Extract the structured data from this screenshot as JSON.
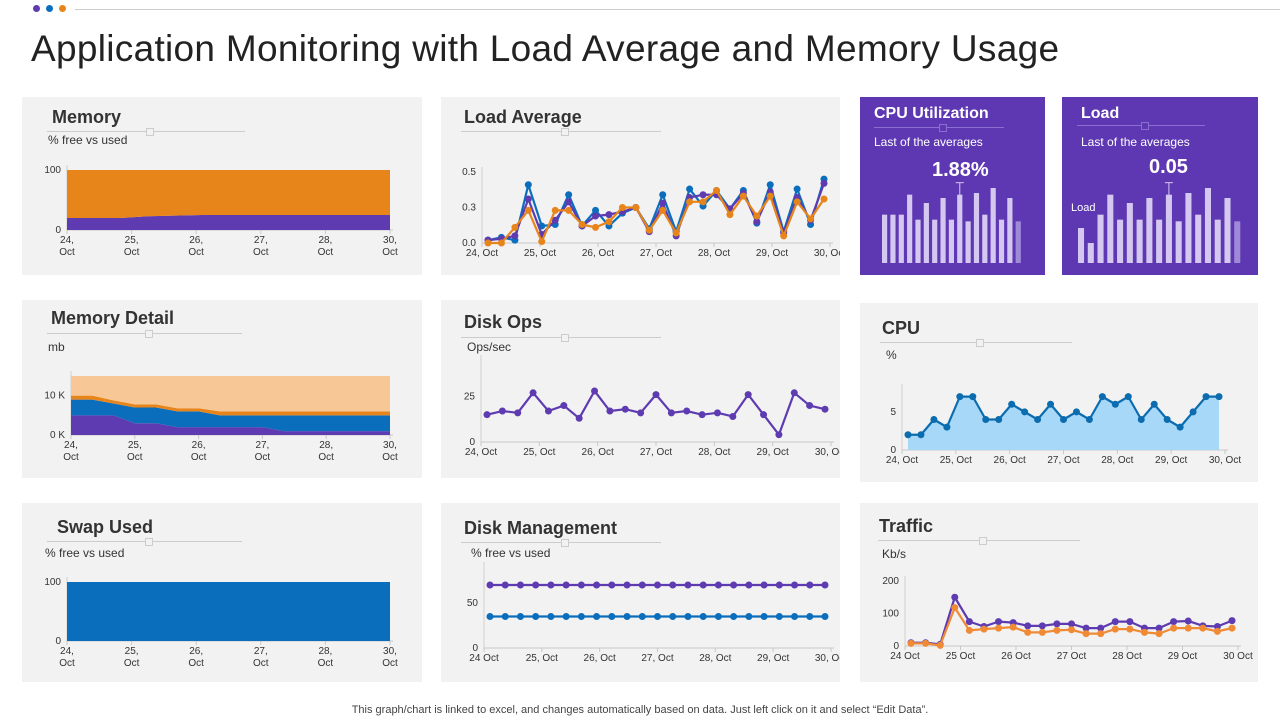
{
  "title": "Application Monitoring with Load Average and Memory Usage",
  "footer": "This graph/chart is linked to excel,  and changes automatically based on data. Just left click on it and select “Edit Data”.",
  "colors": {
    "orange": "#e8851a",
    "purple": "#5e3bb0",
    "blue": "#0a6ebd",
    "peach": "#f7c896",
    "light_blue": "#a8d8f8",
    "card_purple": "#5e38b2"
  },
  "cards": {
    "memory": {
      "title": "Memory",
      "subtitle": "% free vs used"
    },
    "load_average": {
      "title": "Load Average"
    },
    "cpu_utilization": {
      "title": "CPU Utilization",
      "subtitle": "Last of the averages",
      "value": "1.88%"
    },
    "load": {
      "title": "Load",
      "subtitle": "Last of the averages",
      "value": "0.05",
      "side_label": "Load"
    },
    "memory_detail": {
      "title": "Memory Detail",
      "subtitle": "mb"
    },
    "disk_ops": {
      "title": "Disk Ops",
      "subtitle": "Ops/sec"
    },
    "cpu": {
      "title": "CPU",
      "subtitle": "%"
    },
    "swap_used": {
      "title": "Swap Used",
      "subtitle": "% free vs used"
    },
    "disk_management": {
      "title": "Disk Management",
      "subtitle": "% free vs used"
    },
    "traffic": {
      "title": "Traffic",
      "subtitle": "Kb/s"
    }
  },
  "chart_data": [
    {
      "id": "memory",
      "type": "area",
      "stacked": true,
      "ylim": [
        0,
        100
      ],
      "yticks": [
        {
          "v": 0,
          "l": "0"
        },
        {
          "v": 100,
          "l": "100"
        }
      ],
      "xticks": [
        "24,|Oct",
        "25,|Oct",
        "26,|Oct",
        "27,|Oct",
        "28,|Oct",
        "30,|Oct"
      ],
      "series": [
        {
          "color": "#5e3bb0",
          "values": [
            20,
            20,
            20,
            23,
            24,
            25,
            25,
            25,
            25,
            25,
            25,
            25,
            25
          ]
        },
        {
          "color": "#e8851a",
          "values": [
            80,
            80,
            80,
            77,
            76,
            75,
            75,
            75,
            75,
            75,
            75,
            75,
            75
          ]
        }
      ]
    },
    {
      "id": "load_average",
      "type": "line",
      "markers": true,
      "ylim": [
        0,
        0.5
      ],
      "yticks": [
        {
          "v": 0,
          "l": "0.0"
        },
        {
          "v": 0.25,
          "l": "0.3"
        },
        {
          "v": 0.5,
          "l": "0.5"
        }
      ],
      "xticks": [
        "24, Oct",
        "25, Oct",
        "26, Oct",
        "27, Oct",
        "28, Oct",
        "29, Oct",
        "30, Oct"
      ],
      "series": [
        {
          "color": "#0a6ebd",
          "values": [
            0.02,
            0.04,
            0.02,
            0.41,
            0.12,
            0.13,
            0.34,
            0.12,
            0.23,
            0.12,
            0.21,
            0.25,
            0.1,
            0.34,
            0.08,
            0.38,
            0.26,
            0.37,
            0.24,
            0.37,
            0.14,
            0.41,
            0.08,
            0.38,
            0.13,
            0.45
          ]
        },
        {
          "color": "#5e3bb0",
          "values": [
            0.02,
            0.03,
            0.05,
            0.31,
            0.06,
            0.16,
            0.29,
            0.12,
            0.19,
            0.2,
            0.22,
            0.25,
            0.08,
            0.28,
            0.05,
            0.32,
            0.34,
            0.34,
            0.24,
            0.35,
            0.15,
            0.36,
            0.07,
            0.32,
            0.16,
            0.42
          ]
        },
        {
          "color": "#e8851a",
          "values": [
            0,
            0,
            0.11,
            0.23,
            0.01,
            0.23,
            0.23,
            0.13,
            0.11,
            0.15,
            0.25,
            0.25,
            0.09,
            0.23,
            0.07,
            0.29,
            0.29,
            0.37,
            0.2,
            0.33,
            0.19,
            0.33,
            0.05,
            0.29,
            0.17,
            0.31
          ]
        }
      ]
    },
    {
      "id": "memory_detail",
      "type": "area",
      "stacked": true,
      "ylim": [
        0,
        15000
      ],
      "yticks": [
        {
          "v": 0,
          "l": "0 K"
        },
        {
          "v": 10000,
          "l": "10 K"
        }
      ],
      "xticks": [
        "24,|Oct",
        "25,|Oct",
        "26,|Oct",
        "27,|Oct",
        "28,|Oct",
        "30,|Oct"
      ],
      "series": [
        {
          "color": "#5e3bb0",
          "values": [
            5000,
            5000,
            5000,
            3000,
            3000,
            2000,
            2000,
            2000,
            2000,
            2000,
            1000,
            1000,
            1000,
            1000,
            1000,
            1000
          ]
        },
        {
          "color": "#0a6ebd",
          "values": [
            4000,
            4000,
            3000,
            4000,
            4000,
            4000,
            4000,
            3000,
            3000,
            3000,
            4000,
            4000,
            4000,
            4000,
            4000,
            4000
          ]
        },
        {
          "color": "#e8851a",
          "values": [
            1000,
            1000,
            800,
            800,
            800,
            800,
            800,
            1000,
            1000,
            1000,
            1000,
            1000,
            1000,
            1000,
            1000,
            1000
          ]
        },
        {
          "color": "#f7c896",
          "values": [
            5000,
            5000,
            6200,
            7200,
            7200,
            8200,
            8200,
            9000,
            9000,
            9000,
            9000,
            9000,
            9000,
            9000,
            9000,
            9000
          ]
        }
      ]
    },
    {
      "id": "disk_ops",
      "type": "line",
      "markers": true,
      "ylim": [
        0,
        45
      ],
      "yticks": [
        {
          "v": 0,
          "l": "0"
        },
        {
          "v": 25,
          "l": "25"
        }
      ],
      "xticks": [
        "24, Oct",
        "25, Oct",
        "26, Oct",
        "27, Oct",
        "28, Oct",
        "29, Oct",
        "30, Oct"
      ],
      "series": [
        {
          "color": "#5e3bb0",
          "values": [
            15,
            17,
            16,
            27,
            17,
            20,
            13,
            28,
            17,
            18,
            16,
            26,
            16,
            17,
            15,
            16,
            14,
            26,
            15,
            4,
            27,
            20,
            18
          ]
        }
      ]
    },
    {
      "id": "cpu",
      "type": "area-line",
      "markers": true,
      "ylim": [
        0,
        8
      ],
      "yticks": [
        {
          "v": 0,
          "l": "0"
        },
        {
          "v": 5,
          "l": "5"
        }
      ],
      "xticks": [
        "24, Oct",
        "25, Oct",
        "26, Oct",
        "27, Oct",
        "28, Oct",
        "29, Oct",
        "30, Oct"
      ],
      "series": [
        {
          "color": "#0b6cb0",
          "fill": "#a8d8f8",
          "values": [
            2,
            2,
            4,
            3,
            7,
            7,
            4,
            4,
            6,
            5,
            4,
            6,
            4,
            5,
            4,
            7,
            6,
            7,
            4,
            6,
            4,
            3,
            5,
            7,
            7
          ]
        }
      ]
    },
    {
      "id": "swap_used",
      "type": "area",
      "stacked": true,
      "ylim": [
        0,
        100
      ],
      "yticks": [
        {
          "v": 0,
          "l": "0"
        },
        {
          "v": 100,
          "l": "100"
        }
      ],
      "xticks": [
        "24,|Oct",
        "25,|Oct",
        "26,|Oct",
        "27,|Oct",
        "28,|Oct",
        "30,|Oct"
      ],
      "series": [
        {
          "color": "#0a6ebd",
          "values": [
            100,
            100,
            100,
            100,
            100,
            100,
            100
          ]
        }
      ]
    },
    {
      "id": "disk_management",
      "type": "line",
      "markers": true,
      "ylim": [
        0,
        90
      ],
      "yticks": [
        {
          "v": 0,
          "l": "0"
        },
        {
          "v": 50,
          "l": "50"
        }
      ],
      "xticks": [
        "24 Oct",
        "25, Oct",
        "26, Oct",
        "27, Oct",
        "28, Oct",
        "29, Oct",
        "30, Oct"
      ],
      "series": [
        {
          "color": "#5e3bb0",
          "values": [
            70,
            70,
            70,
            70,
            70,
            70,
            70,
            70,
            70,
            70,
            70,
            70,
            70,
            70,
            70,
            70,
            70,
            70,
            70,
            70,
            70,
            70,
            70
          ]
        },
        {
          "color": "#0a6ebd",
          "values": [
            35,
            35,
            35,
            35,
            35,
            35,
            35,
            35,
            35,
            35,
            35,
            35,
            35,
            35,
            35,
            35,
            35,
            35,
            35,
            35,
            35,
            35,
            35
          ]
        }
      ]
    },
    {
      "id": "traffic",
      "type": "line",
      "markers": true,
      "ylim": [
        0,
        200
      ],
      "yticks": [
        {
          "v": 0,
          "l": "0"
        },
        {
          "v": 100,
          "l": "100"
        },
        {
          "v": 200,
          "l": "200"
        }
      ],
      "xticks": [
        "24 Oct",
        "25 Oct",
        "26 Oct",
        "27 Oct",
        "28 Oct",
        "29 Oct",
        "30 Oct"
      ],
      "series": [
        {
          "color": "#5e3bb0",
          "values": [
            10,
            10,
            5,
            150,
            75,
            60,
            75,
            72,
            62,
            62,
            68,
            68,
            55,
            55,
            75,
            75,
            55,
            55,
            75,
            77,
            62,
            60,
            78
          ]
        },
        {
          "color": "#f08a35",
          "values": [
            8,
            8,
            2,
            118,
            48,
            52,
            55,
            58,
            42,
            42,
            48,
            50,
            38,
            38,
            52,
            52,
            42,
            38,
            55,
            55,
            55,
            45,
            55
          ]
        }
      ]
    },
    {
      "id": "cpu_utilization",
      "type": "bar",
      "series": [
        {
          "color": "#d4c8f0",
          "values": [
            145,
            145,
            145,
            205,
            130,
            180,
            130,
            195,
            130,
            205,
            125,
            210,
            145,
            225,
            130,
            195,
            125
          ]
        }
      ],
      "highlight_index": 9
    },
    {
      "id": "load",
      "type": "bar",
      "series": [
        {
          "color": "#d4c8f0",
          "values": [
            105,
            60,
            145,
            205,
            130,
            180,
            130,
            195,
            130,
            205,
            125,
            210,
            145,
            225,
            130,
            195,
            125
          ]
        }
      ],
      "highlight_index": 9
    }
  ]
}
